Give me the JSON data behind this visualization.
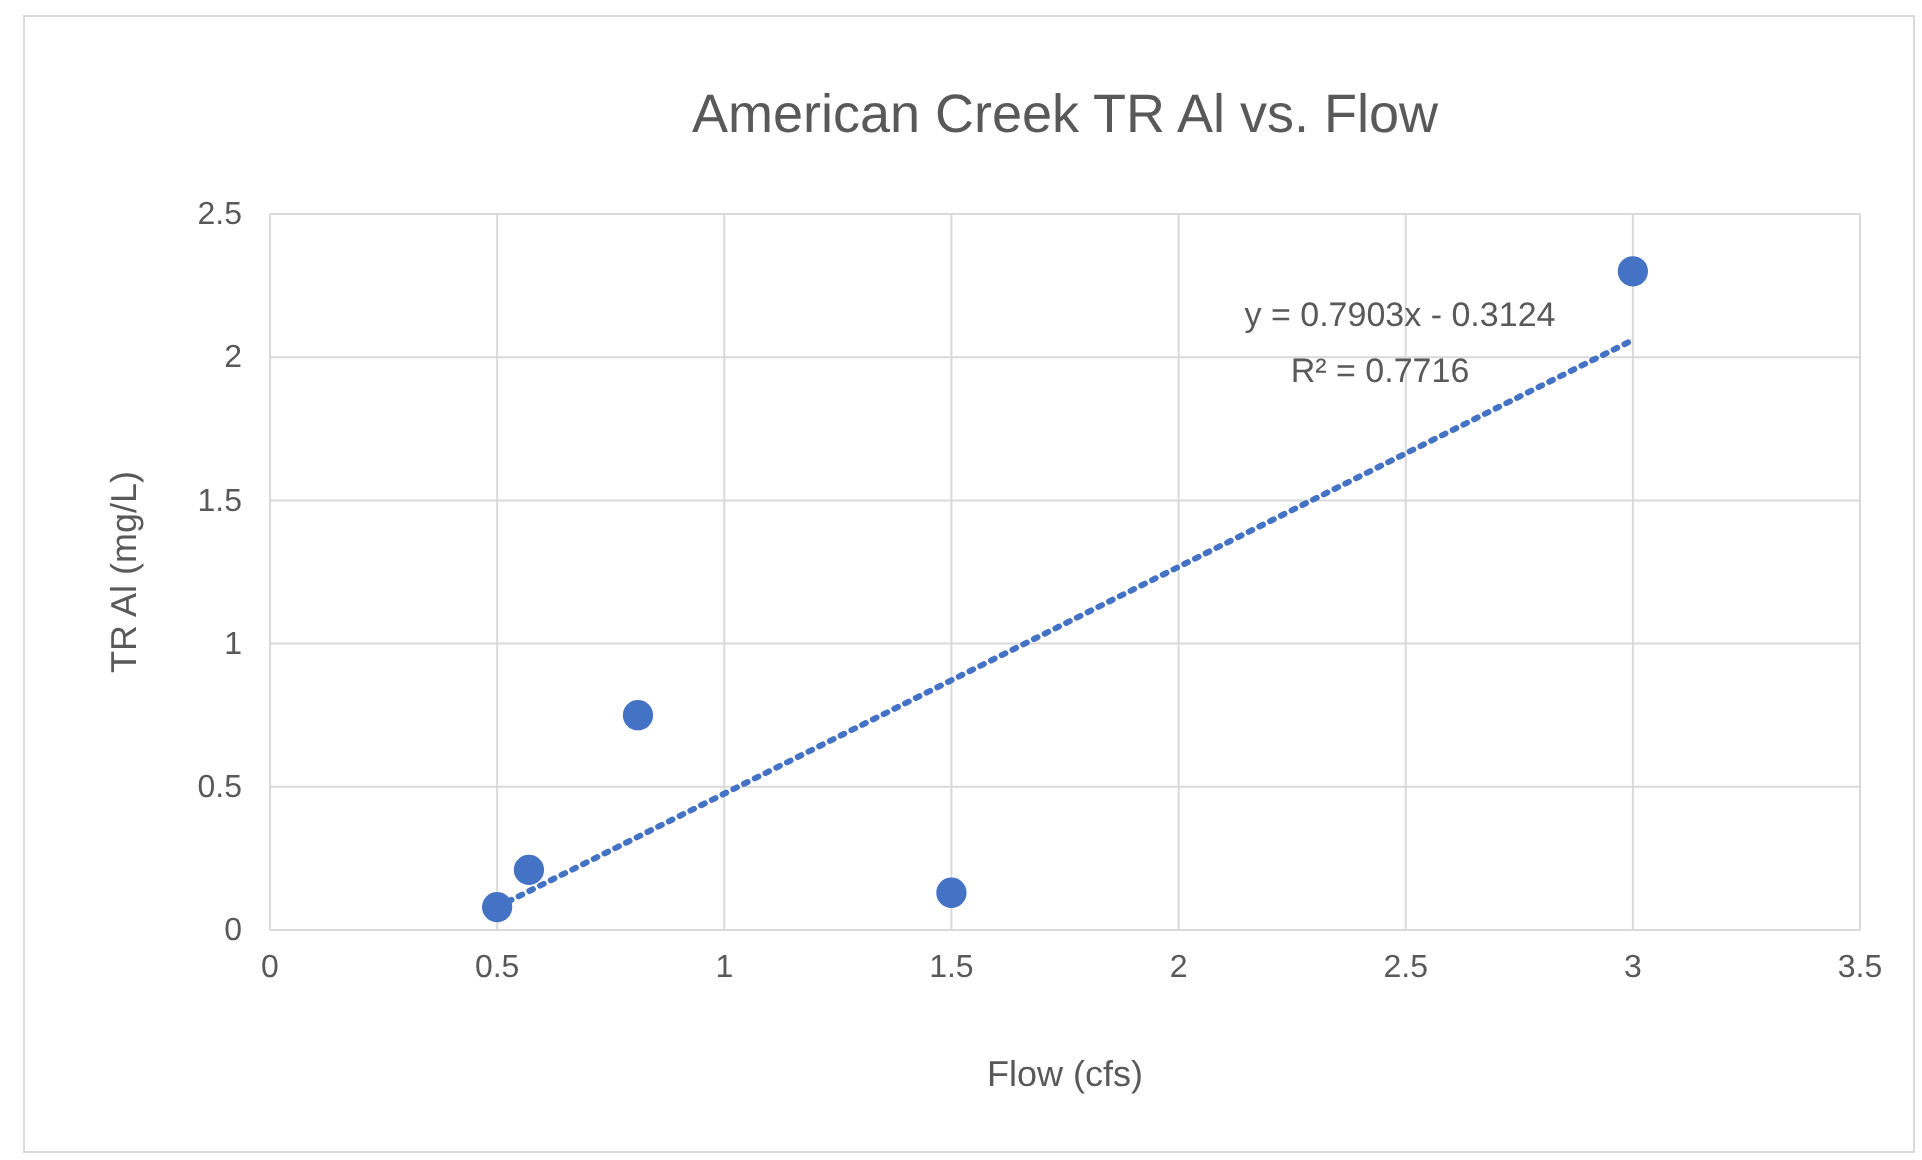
{
  "chart_data": {
    "type": "scatter",
    "title": "American Creek TR Al vs. Flow",
    "xlabel": "Flow (cfs)",
    "ylabel": "TR Al (mg/L)",
    "xlim": [
      0,
      3.5
    ],
    "xticks": [
      0,
      0.5,
      1,
      1.5,
      2,
      2.5,
      3,
      3.5
    ],
    "ylim": [
      0,
      2.5
    ],
    "yticks": [
      0,
      0.5,
      1,
      1.5,
      2,
      2.5
    ],
    "grid": true,
    "marker": "circle",
    "series": [
      {
        "color": "#4472c4",
        "x": [
          0.5,
          0.57,
          0.81,
          1.5,
          3
        ],
        "values": [
          0.08,
          0.21,
          0.75,
          0.13,
          2.3
        ]
      },
      {
        "type": "line",
        "color": "#4472c4",
        "line_style": "dotted",
        "marker": "none",
        "x": [
          0.5,
          3
        ],
        "values": [
          0.08,
          2.06
        ]
      }
    ],
    "annotations": [
      "y = 0.7903x - 0.3124",
      "R² = 0.7716"
    ]
  }
}
